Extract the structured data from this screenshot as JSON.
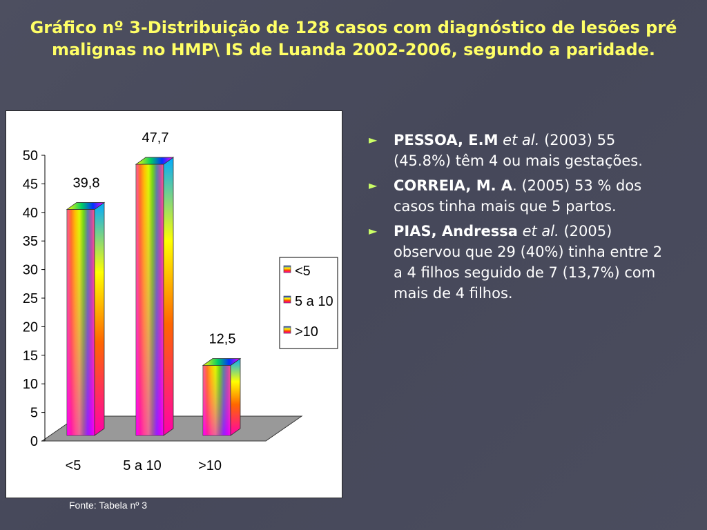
{
  "slide": {
    "title": "Gráfico nº 3-Distribuição de 128 casos com diagnóstico de lesões pré malignas no  HMP\\ IS de Luanda 2002-2006, segundo a paridade.",
    "source": "Fonte: Tabela nº 3"
  },
  "references": [
    {
      "bullet": "►",
      "author": "PESSOA, E.M",
      "etal": "et al.",
      "text": " (2003) 55 (45.8%) têm 4 ou mais gestações."
    },
    {
      "bullet": "►",
      "author": "CORREIA, M. A",
      "etal": "",
      "text": ". (2005) 53 % dos casos tinha mais que 5 partos."
    },
    {
      "bullet": "►",
      "author": " PIAS, Andressa",
      "etal": "et al.",
      "text": " (2005) observou que 29 (40%) tinha entre 2 a 4 filhos seguido de 7 (13,7%) com mais de 4 filhos."
    }
  ],
  "chart_data": {
    "type": "bar",
    "categories": [
      "<5",
      "5  a 10",
      ">10"
    ],
    "values": [
      39.8,
      47.7,
      12.5
    ],
    "value_labels": [
      "39,8",
      "47,7",
      "12,5"
    ],
    "yticks": [
      "0",
      "5",
      "10",
      "15",
      "20",
      "25",
      "30",
      "35",
      "40",
      "45",
      "50"
    ],
    "ylim": [
      0,
      50
    ],
    "legend": [
      "<5",
      "5  a 10",
      ">10"
    ],
    "legend_position": "right",
    "grid": false,
    "three_d": true
  }
}
